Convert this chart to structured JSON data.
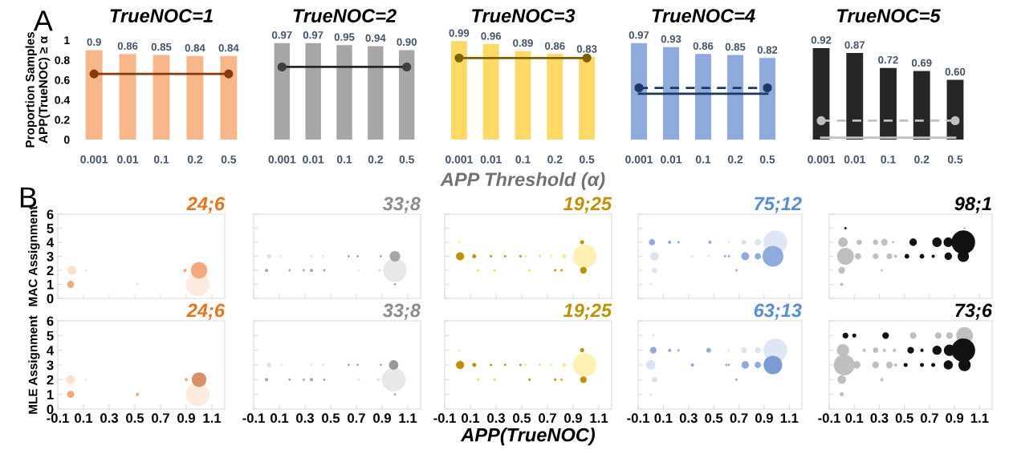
{
  "chart_data": [
    {
      "type": "bar",
      "title": "TrueNOC=1",
      "ylabel": "Proportion Samples\nAPP(TrueNOC) ≥ α",
      "annotations": [
        "A"
      ],
      "categories": [
        "0.001",
        "0.01",
        "0.1",
        "0.2",
        "0.5"
      ],
      "ylim": [
        0,
        1
      ],
      "yticks": [
        0,
        0.2,
        0.4,
        0.6,
        0.8,
        1
      ],
      "series": [
        {
          "type": "bar",
          "color": "#f8b78a",
          "values": [
            0.9,
            0.86,
            0.85,
            0.84,
            0.84
          ],
          "value_labels": [
            "0.9",
            "0.86",
            "0.85",
            "0.84",
            "0.84"
          ]
        },
        {
          "type": "line",
          "color": "#843c0c",
          "line_style": "solid",
          "values": [
            0.66,
            0.66,
            0.66,
            0.66,
            0.66
          ]
        },
        {
          "type": "scatter",
          "color": "#843c0c",
          "marker": "circle",
          "values": [
            0.66,
            null,
            null,
            null,
            0.66
          ]
        }
      ]
    },
    {
      "type": "bar",
      "title": "TrueNOC=2",
      "tick_labels": "x",
      "categories": [
        "0.001",
        "0.01",
        "0.1",
        "0.2",
        "0.5"
      ],
      "ylim": [
        0,
        1
      ],
      "yticks": [
        0,
        0.2,
        0.4,
        0.6,
        0.8,
        1
      ],
      "series": [
        {
          "type": "bar",
          "color": "#a6a6a6",
          "values": [
            0.97,
            0.97,
            0.95,
            0.94,
            0.9
          ],
          "value_labels": [
            "0.97",
            "0.97",
            "0.95",
            "0.94",
            "0.90"
          ]
        },
        {
          "type": "line",
          "color": "#262626",
          "line_style": "solid",
          "values": [
            0.73,
            0.73,
            0.73,
            0.73,
            0.73
          ]
        },
        {
          "type": "scatter",
          "color": "#404040",
          "marker": "circle",
          "values": [
            0.73,
            null,
            null,
            null,
            0.73
          ]
        }
      ]
    },
    {
      "type": "bar",
      "title": "TrueNOC=3",
      "xlabel": "APP Threshold (α)",
      "tick_labels": "x",
      "categories": [
        "0.001",
        "0.01",
        "0.1",
        "0.2",
        "0.5"
      ],
      "ylim": [
        0,
        1
      ],
      "yticks": [
        0,
        0.2,
        0.4,
        0.6,
        0.8,
        1
      ],
      "series": [
        {
          "type": "bar",
          "color": "#ffd966",
          "values": [
            0.99,
            0.96,
            0.89,
            0.86,
            0.83
          ],
          "value_labels": [
            "0.99",
            "0.96",
            "0.89",
            "0.86",
            "0.83"
          ]
        },
        {
          "type": "line",
          "color": "#7f6000",
          "line_style": "solid",
          "values": [
            0.82,
            0.82,
            0.82,
            0.82,
            0.82
          ]
        },
        {
          "type": "scatter",
          "color": "#7f6000",
          "marker": "circle",
          "values": [
            0.82,
            null,
            null,
            null,
            0.82
          ]
        }
      ]
    },
    {
      "type": "bar",
      "title": "TrueNOC=4",
      "tick_labels": "x",
      "categories": [
        "0.001",
        "0.01",
        "0.1",
        "0.2",
        "0.5"
      ],
      "ylim": [
        0,
        1
      ],
      "yticks": [
        0,
        0.2,
        0.4,
        0.6,
        0.8,
        1
      ],
      "series": [
        {
          "type": "bar",
          "color": "#8faadc",
          "values": [
            0.97,
            0.93,
            0.86,
            0.85,
            0.82
          ],
          "value_labels": [
            "0.97",
            "0.93",
            "0.86",
            "0.85",
            "0.82"
          ]
        },
        {
          "type": "line",
          "color": "#203864",
          "line_style": "dashed",
          "values": [
            0.52,
            0.52,
            0.52,
            0.52,
            0.52
          ]
        },
        {
          "type": "scatter",
          "color": "#203864",
          "marker": "circle",
          "values": [
            0.52,
            null,
            null,
            null,
            0.52
          ]
        },
        {
          "type": "line",
          "color": "#203864",
          "line_style": "solid",
          "values": [
            0.46,
            0.46,
            0.46,
            0.46,
            0.46
          ]
        }
      ]
    },
    {
      "type": "bar",
      "title": "TrueNOC=5",
      "tick_labels": "x",
      "categories": [
        "0.001",
        "0.01",
        "0.1",
        "0.2",
        "0.5"
      ],
      "ylim": [
        0,
        1
      ],
      "yticks": [
        0,
        0.2,
        0.4,
        0.6,
        0.8,
        1
      ],
      "series": [
        {
          "type": "bar",
          "color": "#262626",
          "values": [
            0.92,
            0.87,
            0.72,
            0.69,
            0.6
          ],
          "value_labels": [
            "0.92",
            "0.87",
            "0.72",
            "0.69",
            "0.60"
          ]
        },
        {
          "type": "line",
          "color": "#bfbfbf",
          "line_style": "dashed",
          "values": [
            0.19,
            0.19,
            0.19,
            0.19,
            0.19
          ]
        },
        {
          "type": "scatter",
          "color": "#bfbfbf",
          "marker": "circle",
          "values": [
            0.19,
            null,
            null,
            null,
            0.19
          ]
        },
        {
          "type": "line",
          "color": "#c9bdbd",
          "line_style": "solid",
          "values": [
            0.02,
            0.02,
            0.02,
            0.02,
            0.02
          ]
        }
      ]
    },
    {
      "type": "bubble",
      "title": "24;6",
      "ylabel": "MAC Assignment",
      "annotations": [
        "B"
      ],
      "tick_labels": "y",
      "xlim": [
        -0.1,
        1.2
      ],
      "xticks": [
        -0.1,
        0.1,
        0.3,
        0.5,
        0.7,
        0.9,
        1.1
      ],
      "ylim": [
        0,
        6
      ],
      "yticks": [
        0,
        1,
        2,
        3,
        4,
        5,
        6
      ],
      "series": [
        {
          "color": "#e8731a",
          "x": [
            0.01,
            0.0,
            0.12,
            0.52,
            0.89,
            0.99,
            1.0
          ],
          "values": [
            2,
            1,
            2,
            1,
            2,
            1,
            2
          ],
          "sizes": [
            0.14,
            0.09,
            0.01,
            0.01,
            0.02,
            1,
            0.49
          ],
          "colors": [
            "#fde0cc",
            "#f4a97c",
            "#fde0cc",
            "#fde0cc",
            "#f4a97c",
            "#fdebdf",
            "#f4a97c"
          ]
        }
      ]
    },
    {
      "type": "bubble",
      "title": "33;8",
      "tick_labels": false,
      "xlim": [
        -0.1,
        1.2
      ],
      "xticks": [
        -0.1,
        0.1,
        0.3,
        0.5,
        0.7,
        0.9,
        1.1
      ],
      "ylim": [
        0,
        6
      ],
      "yticks": [
        0,
        1,
        2,
        3,
        4,
        5,
        6
      ],
      "series": [
        {
          "color": "#8c8c8c",
          "x": [
            0.02,
            0.0,
            0.11,
            0.18,
            0.29,
            0.35,
            0.35,
            0.44,
            0.45,
            0.64,
            0.71,
            0.72,
            0.89,
            0.88,
            1.0,
            1.0,
            1.0
          ],
          "values": [
            3,
            2,
            3,
            2,
            2,
            2,
            3,
            3,
            2,
            3,
            3,
            2,
            3,
            2,
            2,
            3,
            1
          ],
          "sizes": [
            0.04,
            0.02,
            0.01,
            0.01,
            0.01,
            0.02,
            0.01,
            0.01,
            0.01,
            0.01,
            0.01,
            0.01,
            0.01,
            0.02,
            1,
            0.2,
            0.01
          ],
          "colors": [
            "#e3e3e3",
            "#a6a6a6",
            "#e3e3e3",
            "#a6a6a6",
            "#a6a6a6",
            "#a6a6a6",
            "#e3e3e3",
            "#e3e3e3",
            "#a6a6a6",
            "#a6a6a6",
            "#a6a6a6",
            "#e3e3e3",
            "#a6a6a6",
            "#e3e3e3",
            "#e8e8e8",
            "#a6a6a6",
            "#a6a6a6"
          ]
        }
      ]
    },
    {
      "type": "bubble",
      "title": "19;25",
      "tick_labels": false,
      "xlim": [
        -0.1,
        1.2
      ],
      "xticks": [
        -0.1,
        0.1,
        0.3,
        0.5,
        0.7,
        0.9,
        1.1
      ],
      "ylim": [
        0,
        6
      ],
      "yticks": [
        0,
        1,
        2,
        3,
        4,
        5,
        6
      ],
      "series": [
        {
          "color": "#bf9000",
          "x": [
            0.01,
            0.02,
            0.13,
            0.16,
            0.26,
            0.29,
            0.37,
            0.49,
            0.53,
            0.56,
            0.64,
            0.73,
            0.76,
            0.81,
            0.83,
            0.99,
            0.97,
            0.98
          ],
          "values": [
            4,
            3,
            3,
            2,
            3,
            2,
            3,
            3,
            3,
            2,
            3,
            3,
            2,
            2,
            3,
            3,
            4,
            2
          ],
          "sizes": [
            0.01,
            0.12,
            0.03,
            0.01,
            0.01,
            0.01,
            0.01,
            0.01,
            0.01,
            0.01,
            0.01,
            0.01,
            0.01,
            0.01,
            0.03,
            1,
            0.03,
            0.08
          ],
          "colors": [
            "#ffe699",
            "#bf9000",
            "#bf9000",
            "#ffd24d",
            "#bf9000",
            "#ffd24d",
            "#bf9000",
            "#bf9000",
            "#ffe699",
            "#ffd24d",
            "#ffd966",
            "#ffe699",
            "#bf9000",
            "#bf9000",
            "#ffe699",
            "#fff0b3",
            "#bf9000",
            "#bf9000"
          ]
        }
      ]
    },
    {
      "type": "bubble",
      "title": "75;12",
      "tick_labels": false,
      "xlim": [
        -0.1,
        1.2
      ],
      "xticks": [
        -0.1,
        0.1,
        0.3,
        0.5,
        0.7,
        0.9,
        1.1
      ],
      "ylim": [
        0,
        6
      ],
      "yticks": [
        0,
        1,
        2,
        3,
        4,
        5,
        6
      ],
      "series": [
        {
          "color": "#558ed5",
          "x": [
            0.01,
            0.03,
            0.03,
            0.0,
            0.15,
            0.22,
            0.33,
            0.46,
            0.47,
            0.59,
            0.62,
            0.62,
            0.68,
            0.74,
            0.75,
            0.85,
            0.85,
            0.99,
            0.97
          ],
          "values": [
            4,
            3,
            2,
            1,
            4,
            4,
            3,
            3,
            4,
            3,
            3,
            4,
            2,
            4,
            3,
            4,
            3,
            4,
            3
          ],
          "sizes": [
            0.07,
            0.13,
            0.05,
            0.01,
            0.02,
            0.01,
            0.01,
            0.01,
            0.02,
            0.01,
            0.01,
            0.01,
            0.01,
            0.05,
            0.11,
            0.07,
            0.07,
            1,
            0.78
          ],
          "colors": [
            "#8faadc",
            "#dae3f3",
            "#dae3f3",
            "#dae3f3",
            "#8faadc",
            "#8faadc",
            "#dae3f3",
            "#dae3f3",
            "#8faadc",
            "#8faadc",
            "#8faadc",
            "#dae3f3",
            "#8faadc",
            "#dae3f3",
            "#8faadc",
            "#dae3f3",
            "#8faadc",
            "#dfe7f6",
            "#8faadc"
          ]
        }
      ]
    },
    {
      "type": "bubble",
      "title": "98;1",
      "tick_labels": false,
      "xlim": [
        -0.1,
        1.2
      ],
      "xticks": [
        -0.1,
        0.1,
        0.3,
        0.5,
        0.7,
        0.9,
        1.1
      ],
      "ylim": [
        0,
        6
      ],
      "yticks": [
        0,
        1,
        2,
        3,
        4,
        5,
        6
      ],
      "series": [
        {
          "color": "#000000",
          "x": [
            0.03,
            0.01,
            0.03,
            0.0,
            0.0,
            0.13,
            0.14,
            0.27,
            0.27,
            0.32,
            0.34,
            0.38,
            0.41,
            0.43,
            0.52,
            0.57,
            0.64,
            0.73,
            0.76,
            0.85,
            0.85,
            0.97,
            0.97,
            0.98
          ],
          "values": [
            5,
            4,
            3,
            2,
            1,
            3,
            4,
            3,
            4,
            2,
            4,
            3,
            4,
            3,
            3,
            4,
            3,
            3,
            4,
            3,
            4,
            4,
            3,
            5
          ],
          "sizes": [
            0.01,
            0.16,
            0.51,
            0.08,
            0.02,
            0.07,
            0.05,
            0.06,
            0.05,
            0.01,
            0.08,
            0.06,
            0.01,
            0.02,
            0.04,
            0.1,
            0.04,
            0.02,
            0.16,
            0.1,
            0.16,
            1,
            0.23,
            0.01
          ],
          "colors": [
            "#111111",
            "#bfbfbf",
            "#bfbfbf",
            "#bfbfbf",
            "#bfbfbf",
            "#bfbfbf",
            "#bfbfbf",
            "#bfbfbf",
            "#bfbfbf",
            "#bfbfbf",
            "#bfbfbf",
            "#bfbfbf",
            "#bfbfbf",
            "#bfbfbf",
            "#111111",
            "#111111",
            "#111111",
            "#111111",
            "#111111",
            "#111111",
            "#111111",
            "#111111",
            "#111111",
            "#bfbfbf"
          ]
        }
      ]
    },
    {
      "type": "bubble",
      "title": "24;6",
      "ylabel": "MLE Assignment",
      "xlim": [
        -0.1,
        1.2
      ],
      "xticks": [
        -0.1,
        0.1,
        0.3,
        0.5,
        0.7,
        0.9,
        1.1
      ],
      "ylim": [
        0,
        6
      ],
      "yticks": [
        0,
        1,
        2,
        3,
        4,
        5,
        6
      ],
      "series": [
        {
          "color": "#e8731a",
          "x": [
            0.0,
            0.0,
            0.12,
            0.52,
            0.9,
            0.99,
            1.0
          ],
          "values": [
            2,
            1,
            2,
            1,
            2,
            1,
            2
          ],
          "sizes": [
            0.14,
            0.09,
            0.01,
            0.02,
            0.02,
            1,
            0.39
          ],
          "colors": [
            "#fde0cc",
            "#f4a97c",
            "#fde0cc",
            "#f4a97c",
            "#f4a97c",
            "#fdebdf",
            "#d9916a"
          ]
        }
      ]
    },
    {
      "type": "bubble",
      "title": "33;8",
      "tick_labels": "x",
      "xlim": [
        -0.1,
        1.2
      ],
      "xticks": [
        -0.1,
        0.1,
        0.3,
        0.5,
        0.7,
        0.9,
        1.1
      ],
      "ylim": [
        0,
        6
      ],
      "yticks": [
        0,
        1,
        2,
        3,
        4,
        5,
        6
      ],
      "series": [
        {
          "color": "#8c8c8c",
          "x": [
            0.02,
            0.0,
            0.12,
            0.18,
            0.29,
            0.35,
            0.35,
            0.44,
            0.45,
            0.64,
            0.71,
            0.72,
            0.89,
            0.87,
            0.99,
            0.99,
            1.0
          ],
          "values": [
            3,
            2,
            3,
            2,
            2,
            2,
            3,
            3,
            2,
            3,
            3,
            2,
            3,
            2,
            2,
            3,
            1
          ],
          "sizes": [
            0.04,
            0.02,
            0.01,
            0.01,
            0.01,
            0.02,
            0.01,
            0.01,
            0.01,
            0.01,
            0.01,
            0.01,
            0.01,
            0.02,
            1,
            0.16,
            0.01
          ],
          "colors": [
            "#e3e3e3",
            "#a6a6a6",
            "#e3e3e3",
            "#a6a6a6",
            "#a6a6a6",
            "#a6a6a6",
            "#e3e3e3",
            "#e3e3e3",
            "#a6a6a6",
            "#a6a6a6",
            "#a6a6a6",
            "#e3e3e3",
            "#a6a6a6",
            "#e3e3e3",
            "#e8e8e8",
            "#999999",
            "#a6a6a6"
          ]
        }
      ]
    },
    {
      "type": "bubble",
      "title": "19;25",
      "xlabel": "APP(TrueNOC)",
      "tick_labels": "x",
      "xlim": [
        -0.1,
        1.2
      ],
      "xticks": [
        -0.1,
        0.1,
        0.3,
        0.5,
        0.7,
        0.9,
        1.1
      ],
      "ylim": [
        0,
        6
      ],
      "yticks": [
        0,
        1,
        2,
        3,
        4,
        5,
        6
      ],
      "series": [
        {
          "color": "#bf9000",
          "x": [
            0.01,
            0.02,
            0.13,
            0.16,
            0.26,
            0.29,
            0.37,
            0.49,
            0.53,
            0.56,
            0.64,
            0.73,
            0.76,
            0.81,
            0.83,
            0.99,
            0.97,
            0.98
          ],
          "values": [
            4,
            3,
            3,
            2,
            3,
            2,
            3,
            3,
            3,
            2,
            3,
            3,
            2,
            2,
            3,
            3,
            4,
            2
          ],
          "sizes": [
            0.01,
            0.12,
            0.03,
            0.01,
            0.01,
            0.01,
            0.01,
            0.01,
            0.01,
            0.01,
            0.01,
            0.01,
            0.01,
            0.01,
            0.03,
            1,
            0.03,
            0.08
          ],
          "colors": [
            "#ffe699",
            "#bf9000",
            "#bf9000",
            "#ffd24d",
            "#bf9000",
            "#ffd24d",
            "#bf9000",
            "#bf9000",
            "#ffe699",
            "#bf9000",
            "#ffd966",
            "#ffe699",
            "#bf9000",
            "#c9a94a",
            "#ffe699",
            "#fff0b3",
            "#bf9000",
            "#bf9000"
          ]
        }
      ]
    },
    {
      "type": "bubble",
      "title": "63;13",
      "tick_labels": "x",
      "xlim": [
        -0.1,
        1.2
      ],
      "xticks": [
        -0.1,
        0.1,
        0.3,
        0.5,
        0.7,
        0.9,
        1.1
      ],
      "ylim": [
        0,
        6
      ],
      "yticks": [
        0,
        1,
        2,
        3,
        4,
        5,
        6
      ],
      "series": [
        {
          "color": "#558ed5",
          "x": [
            0.02,
            0.02,
            0.0,
            0.03,
            0.0,
            0.15,
            0.22,
            0.33,
            0.46,
            0.62,
            0.6,
            0.62,
            0.68,
            0.74,
            0.75,
            0.85,
            0.85,
            0.99,
            0.97
          ],
          "values": [
            5,
            4,
            3,
            2,
            1,
            4,
            4,
            3,
            4,
            4,
            3,
            3,
            2,
            4,
            3,
            4,
            3,
            4,
            3
          ],
          "sizes": [
            0.01,
            0.08,
            0.16,
            0.06,
            0.01,
            0.02,
            0.01,
            0.02,
            0.04,
            0.01,
            0.01,
            0.01,
            0.01,
            0.06,
            0.1,
            0.06,
            0.07,
            1,
            0.62
          ],
          "colors": [
            "#dae3f3",
            "#8faadc",
            "#dae3f3",
            "#dae3f3",
            "#dae3f3",
            "#8faadc",
            "#8faadc",
            "#8faadc",
            "#8faadc",
            "#dae3f3",
            "#8faadc",
            "#8faadc",
            "#8faadc",
            "#dae3f3",
            "#8faadc",
            "#dae3f3",
            "#8faadc",
            "#dfe7f6",
            "#7b9bd5"
          ]
        }
      ]
    },
    {
      "type": "bubble",
      "title": "73;6",
      "tick_labels": "x",
      "xlim": [
        -0.1,
        1.2
      ],
      "xticks": [
        -0.1,
        0.1,
        0.3,
        0.5,
        0.7,
        0.9,
        1.1
      ],
      "ylim": [
        0,
        6
      ],
      "yticks": [
        0,
        1,
        2,
        3,
        4,
        5,
        6
      ],
      "series": [
        {
          "color": "#000000",
          "x": [
            0.03,
            0.1,
            0.35,
            0.57,
            0.77,
            0.86,
            0.98,
            0.01,
            0.18,
            0.27,
            0.34,
            0.42,
            0.55,
            0.64,
            0.76,
            0.86,
            0.97,
            0.02,
            0.12,
            0.27,
            0.38,
            0.43,
            0.51,
            0.64,
            0.73,
            0.85,
            0.98,
            0.0,
            0.32,
            0.0
          ],
          "values": [
            5,
            5,
            5,
            5,
            5,
            5,
            5,
            4,
            4,
            4,
            4,
            4,
            4,
            4,
            4,
            4,
            4,
            3,
            3,
            3,
            3,
            3,
            3,
            3,
            3,
            3,
            3,
            2,
            2,
            1
          ],
          "sizes": [
            0.06,
            0.03,
            0.08,
            0.08,
            0.08,
            0.08,
            0.51,
            0.27,
            0.02,
            0.05,
            0.02,
            0.02,
            0.08,
            0.02,
            0.15,
            0.23,
            1,
            0.78,
            0.1,
            0.08,
            0.08,
            0.02,
            0.03,
            0.03,
            0.03,
            0.15,
            0.27,
            0.13,
            0.02,
            0.03
          ],
          "colors": [
            "#111111",
            "#111111",
            "#111111",
            "#bfbfbf",
            "#bfbfbf",
            "#bfbfbf",
            "#bfbfbf",
            "#bfbfbf",
            "#bfbfbf",
            "#bfbfbf",
            "#bfbfbf",
            "#bfbfbf",
            "#111111",
            "#111111",
            "#111111",
            "#111111",
            "#111111",
            "#bfbfbf",
            "#bfbfbf",
            "#bfbfbf",
            "#bfbfbf",
            "#bfbfbf",
            "#111111",
            "#111111",
            "#111111",
            "#111111",
            "#111111",
            "#bfbfbf",
            "#bfbfbf",
            "#bfbfbf"
          ]
        }
      ]
    }
  ]
}
